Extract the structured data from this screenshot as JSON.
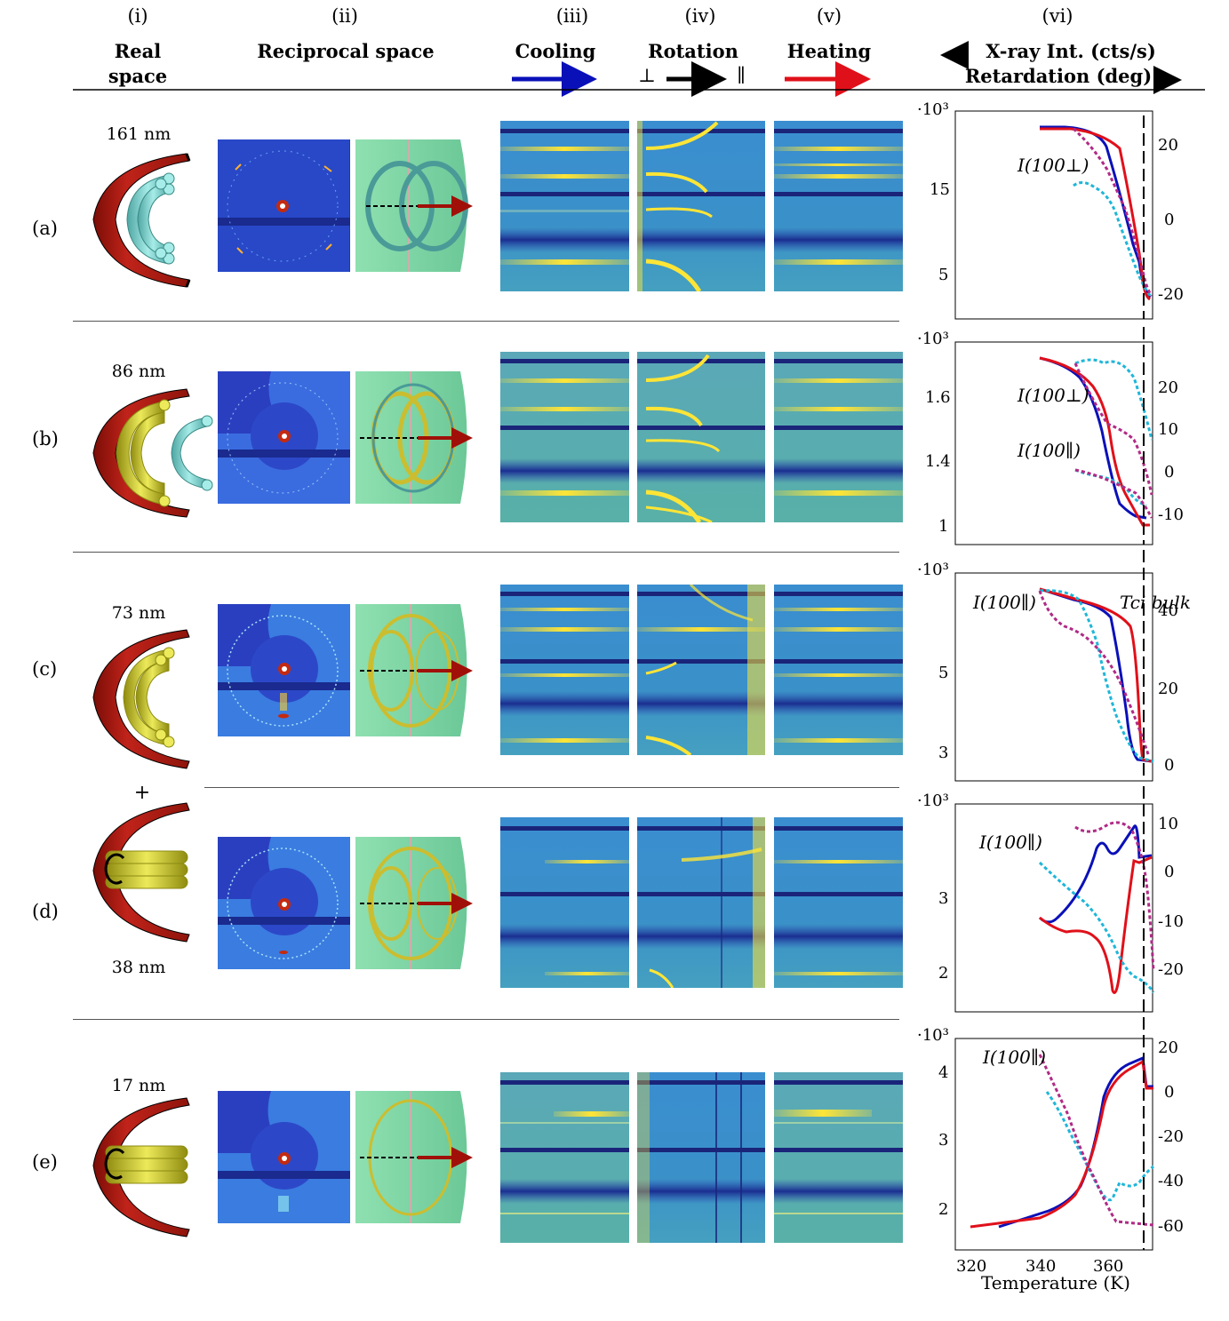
{
  "header": {
    "columns": [
      {
        "num": "(i)",
        "title": "Real",
        "title2": "space"
      },
      {
        "num": "(ii)",
        "title": "Reciprocal space"
      },
      {
        "num": "(iii)",
        "title": "Cooling"
      },
      {
        "num": "(iv)",
        "title": "Rotation",
        "perp": "⊥",
        "par": "∥"
      },
      {
        "num": "(v)",
        "title": "Heating"
      },
      {
        "num": "(vi)",
        "title": "X-ray Int. (cts/s)",
        "title2": "Retardation (deg)"
      }
    ]
  },
  "rows": [
    {
      "label": "(a)",
      "size": "161 nm",
      "scale": "·10³",
      "yticks_left": [
        "15",
        "5"
      ],
      "yticks_right": [
        "20",
        "0",
        "-20"
      ],
      "annotations": [
        "I(100⊥)"
      ]
    },
    {
      "label": "(b)",
      "size": "86 nm",
      "scale": "·10³",
      "yticks_left": [
        "1.6",
        "1.4",
        "1"
      ],
      "yticks_right": [
        "20",
        "10",
        "0",
        "-10"
      ],
      "annotations": [
        "I(100⊥)",
        "I(100∥)"
      ]
    },
    {
      "label": "(c)",
      "size": "73 nm",
      "scale": "·10³",
      "yticks_left": [
        "5",
        "3"
      ],
      "yticks_right": [
        "40",
        "20",
        "0"
      ],
      "annotations": [
        "I(100∥)",
        "Tci bulk"
      ]
    },
    {
      "label": "(d)",
      "size": "38 nm",
      "plus": "+",
      "scale": "·10³",
      "yticks_left": [
        "3",
        "2"
      ],
      "yticks_right": [
        "10",
        "0",
        "-10",
        "-20"
      ],
      "annotations": [
        "I(100∥)"
      ]
    },
    {
      "label": "(e)",
      "size": "17 nm",
      "scale": "·10³",
      "yticks_left": [
        "4",
        "3",
        "2"
      ],
      "yticks_right": [
        "20",
        "0",
        "-20",
        "-40",
        "-60"
      ],
      "annotations": [
        "I(100∥)"
      ]
    }
  ],
  "xaxis": {
    "ticks": [
      "320",
      "340",
      "360"
    ],
    "label": "Temperature (K)"
  },
  "colors": {
    "cooling": "#0a10b8",
    "heating": "#e0101a",
    "cyan_dotted": "#1fb6d8",
    "magenta_dotted": "#b02a86",
    "membrane": "#b51d10",
    "cyan_tube": "#7fd6d2",
    "yellow_tube": "#d8d433",
    "reciprocal_bg": "#7fd8a6",
    "map_bg": "#2e7bd0",
    "map_peak": "#ffe536"
  }
}
